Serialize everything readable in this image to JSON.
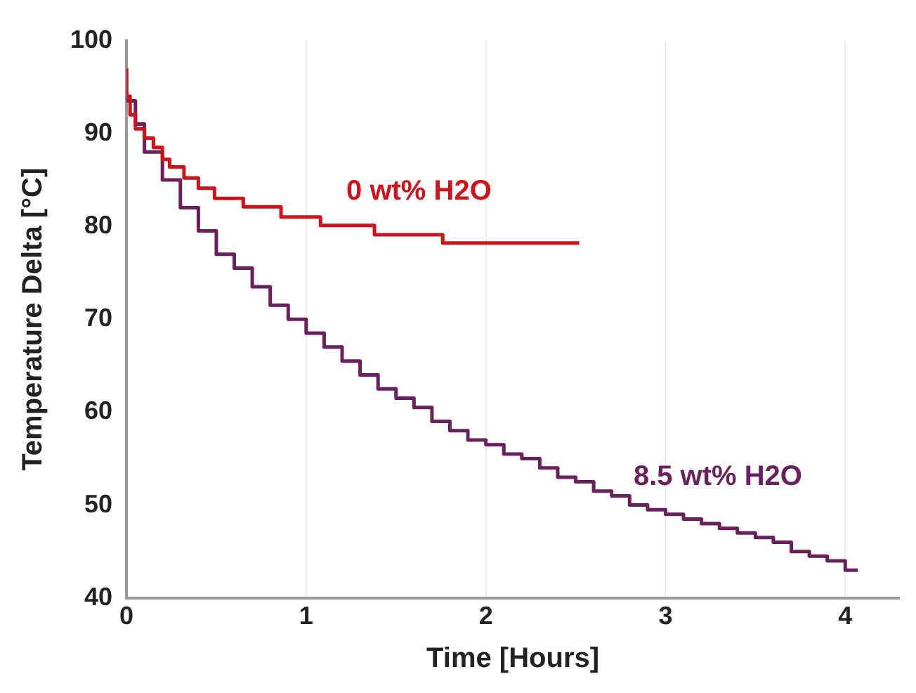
{
  "chart_data": {
    "type": "step",
    "xlabel": "Time [Hours]",
    "ylabel": "Temperature Delta [°C]",
    "xlim": [
      0,
      4.3
    ],
    "xticks": [
      0,
      1,
      2,
      3,
      4
    ],
    "ylim": [
      40,
      100
    ],
    "yticks": [
      40,
      50,
      60,
      70,
      80,
      90,
      100
    ],
    "grid": "x",
    "legend": false,
    "series": [
      {
        "name": "0 wt% H2O",
        "color": "#d0121b",
        "x": [
          0,
          0.02,
          0.05,
          0.1,
          0.15,
          0.2,
          0.24,
          0.32,
          0.4,
          0.49,
          0.65,
          0.86,
          1.08,
          1.38,
          1.76,
          2.33,
          2.52
        ],
        "values": [
          97,
          94,
          92,
          90.5,
          89.5,
          88.5,
          87.2,
          86.4,
          85.2,
          84.1,
          83,
          82.1,
          81,
          80.1,
          79.1,
          78.2,
          78.2
        ]
      },
      {
        "name": "8.5 wt% H2O",
        "color": "#6b1f5e",
        "x": [
          0,
          0.05,
          0.1,
          0.2,
          0.3,
          0.4,
          0.5,
          0.6,
          0.7,
          0.8,
          0.9,
          1.0,
          1.1,
          1.2,
          1.3,
          1.4,
          1.5,
          1.6,
          1.7,
          1.8,
          1.9,
          2.0,
          2.1,
          2.2,
          2.3,
          2.4,
          2.5,
          2.6,
          2.7,
          2.8,
          2.9,
          3.0,
          3.1,
          3.2,
          3.3,
          3.4,
          3.5,
          3.6,
          3.7,
          3.8,
          3.9,
          4.0,
          4.07
        ],
        "values": [
          97,
          93.5,
          91,
          88,
          85,
          82,
          79.5,
          77,
          75.5,
          73.5,
          71.5,
          70,
          68.5,
          67,
          65.5,
          64,
          62.5,
          61.5,
          60.5,
          59,
          58,
          57,
          56.5,
          55.5,
          55,
          54,
          53,
          52.5,
          51.5,
          51,
          50,
          49.5,
          49,
          48.5,
          48,
          47.5,
          47,
          46.5,
          46,
          45,
          44.5,
          44,
          43
        ]
      }
    ]
  }
}
